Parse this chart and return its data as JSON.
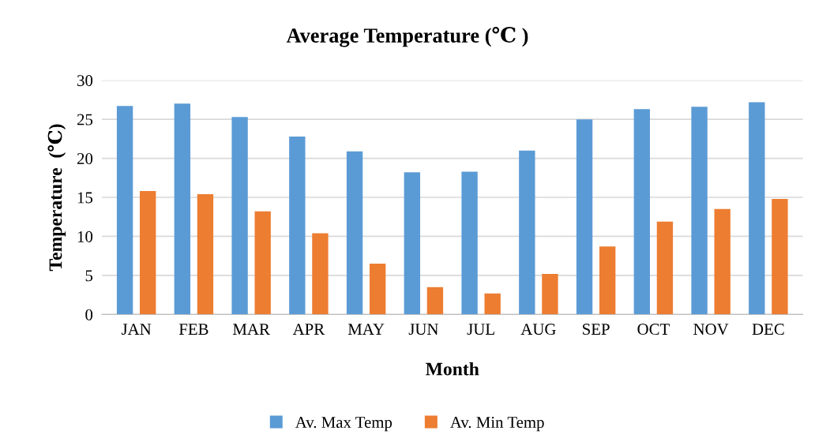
{
  "chart_data": {
    "type": "bar",
    "title": "Average Temperature (℃ )",
    "xlabel": "Month",
    "ylabel": "Temperature  (℃)",
    "categories": [
      "JAN",
      "FEB",
      "MAR",
      "APR",
      "MAY",
      "JUN",
      "JUL",
      "AUG",
      "SEP",
      "OCT",
      "NOV",
      "DEC"
    ],
    "series": [
      {
        "name": "Av. Max Temp",
        "color": "#5b9bd5",
        "values": [
          26.7,
          27.0,
          25.3,
          22.8,
          20.9,
          18.2,
          18.3,
          21.0,
          25.0,
          26.3,
          26.6,
          27.2
        ]
      },
      {
        "name": "Av. Min Temp",
        "color": "#ed7d31",
        "values": [
          15.8,
          15.4,
          13.2,
          10.4,
          6.5,
          3.5,
          2.7,
          5.2,
          8.7,
          11.9,
          13.5,
          14.8
        ]
      }
    ],
    "ylim": [
      0,
      30
    ],
    "yticks": [
      0,
      5,
      10,
      15,
      20,
      25,
      30
    ],
    "grid": "y",
    "legend": "bottom"
  }
}
